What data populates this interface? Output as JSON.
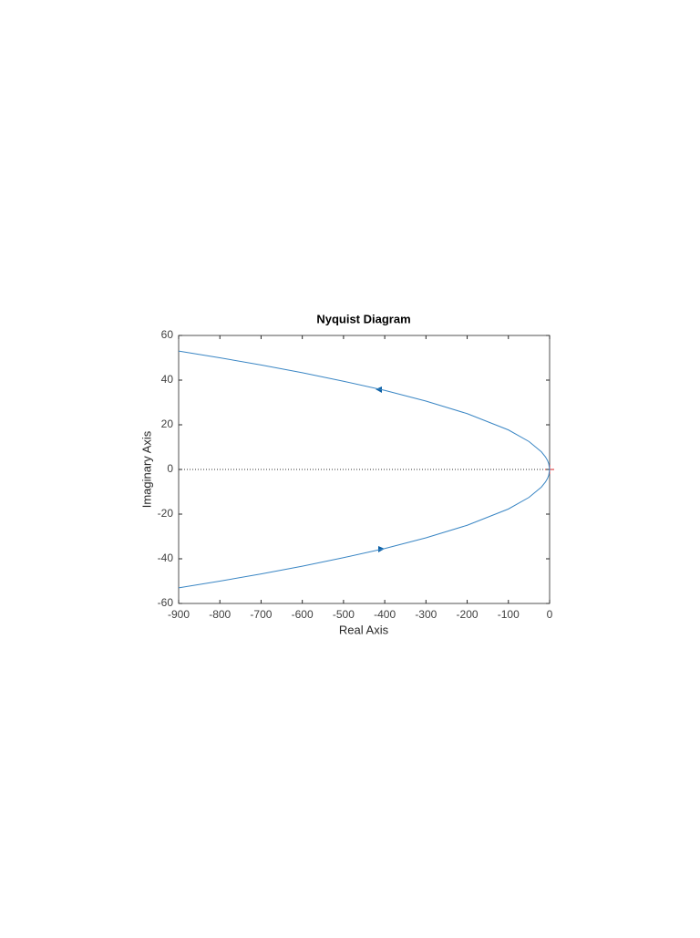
{
  "chart_data": {
    "type": "line",
    "title": "Nyquist Diagram",
    "x_label": "Real Axis",
    "y_label": "Imaginary Axis",
    "x": [
      -900,
      -800,
      -700,
      -600,
      -500,
      -400,
      -300,
      -200,
      -100,
      -50,
      -20,
      -10,
      -5,
      -2,
      0
    ],
    "series": [
      {
        "color": "#3a86c4",
        "values": [
          53.0,
          50.0,
          46.8,
          43.3,
          39.5,
          35.4,
          30.6,
          25.0,
          17.7,
          12.5,
          7.9,
          5.6,
          4.0,
          2.5,
          0
        ]
      },
      {
        "color": "#3a86c4",
        "values": [
          -53.0,
          -50.0,
          -46.8,
          -43.3,
          -39.5,
          -35.4,
          -30.6,
          -25.0,
          -17.7,
          -12.5,
          -7.9,
          -5.6,
          -4.0,
          -2.5,
          0
        ]
      }
    ],
    "xlim": [
      -900,
      0
    ],
    "ylim": [
      -60,
      60
    ],
    "xticks": [
      -900,
      -800,
      -700,
      -600,
      -500,
      -400,
      -300,
      -200,
      -100,
      0
    ],
    "yticks": [
      -60,
      -40,
      -20,
      0,
      20,
      40,
      60
    ]
  }
}
